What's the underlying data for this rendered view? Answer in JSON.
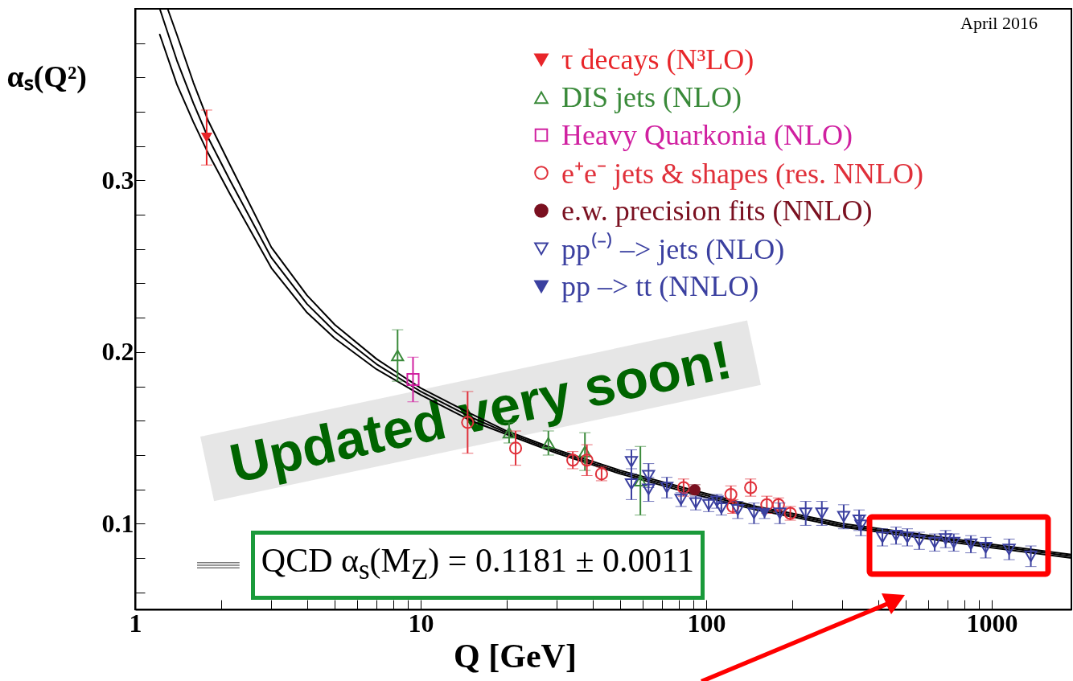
{
  "chart_data": {
    "type": "scatter",
    "xlabel": "Q [GeV]",
    "ylabel": "αₛ(Q²)",
    "xlim": [
      1,
      1900
    ],
    "ylim": [
      0.05,
      0.4
    ],
    "log": "x",
    "xticks": [
      1,
      {
        "value": 2,
        "label": null
      },
      {
        "value": 3,
        "label": null
      },
      {
        "value": 4,
        "label": null
      },
      {
        "value": 5,
        "label": null
      },
      {
        "value": 6,
        "label": null
      },
      {
        "value": 7,
        "label": null
      },
      {
        "value": 8,
        "label": null
      },
      {
        "value": 9,
        "label": null
      },
      10,
      {
        "value": 20,
        "label": null
      },
      {
        "value": 30,
        "label": null
      },
      {
        "value": 40,
        "label": null
      },
      {
        "value": 50,
        "label": null
      },
      {
        "value": 60,
        "label": null
      },
      {
        "value": 70,
        "label": null
      },
      {
        "value": 80,
        "label": null
      },
      {
        "value": 90,
        "label": null
      },
      100,
      {
        "value": 200,
        "label": null
      },
      {
        "value": 300,
        "label": null
      },
      {
        "value": 400,
        "label": null
      },
      {
        "value": 500,
        "label": null
      },
      {
        "value": 600,
        "label": null
      },
      {
        "value": 700,
        "label": null
      },
      {
        "value": 800,
        "label": null
      },
      {
        "value": 900,
        "label": null
      },
      1000
    ],
    "yticks": [
      {
        "value": 0.06,
        "label": null
      },
      {
        "value": 0.08,
        "label": null
      },
      0.1,
      {
        "value": 0.12,
        "label": null
      },
      {
        "value": 0.14,
        "label": null
      },
      {
        "value": 0.16,
        "label": null
      },
      {
        "value": 0.18,
        "label": null
      },
      0.2,
      {
        "value": 0.22,
        "label": null
      },
      {
        "value": 0.24,
        "label": null
      },
      {
        "value": 0.26,
        "label": null
      },
      {
        "value": 0.28,
        "label": null
      },
      0.3,
      {
        "value": 0.32,
        "label": null
      },
      {
        "value": 0.34,
        "label": null
      },
      {
        "value": 0.36,
        "label": null
      },
      {
        "value": 0.38,
        "label": null
      }
    ],
    "grid": false,
    "legend": "top right",
    "annotations": [
      "April 2016",
      "Updated very soon!"
    ],
    "series": [
      {
        "type": "line",
        "name": "QCD α$_{s}$(M$_{Z}$) = 0.1181 ± 0.0011",
        "color": "#000000",
        "line_style": "solid",
        "marker": "none",
        "x": [
          1.22,
          1.4,
          1.6,
          1.8,
          2.15,
          3,
          4,
          5,
          7,
          10,
          15,
          20,
          30,
          50,
          91.2,
          150,
          200,
          300,
          500,
          1000,
          1900
        ],
        "values": [
          0.4,
          0.37,
          0.345,
          0.325,
          0.3,
          0.255,
          0.228,
          0.212,
          0.193,
          0.177,
          0.162,
          0.153,
          0.142,
          0.13,
          0.1181,
          0.109,
          0.105,
          0.099,
          0.094,
          0.087,
          0.081
        ]
      },
      {
        "type": "line",
        "color": "#000000",
        "line_style": "solid",
        "marker": "none",
        "x": [
          1.3,
          1.4,
          1.6,
          1.8,
          2.15,
          3,
          4,
          5,
          7,
          10,
          15,
          20,
          30,
          50,
          91.2,
          150,
          200,
          300,
          500,
          1000,
          1900
        ],
        "values": [
          0.4,
          0.385,
          0.357,
          0.335,
          0.309,
          0.261,
          0.233,
          0.216,
          0.196,
          0.179,
          0.164,
          0.154,
          0.143,
          0.131,
          0.1192,
          0.11,
          0.106,
          0.1,
          0.095,
          0.088,
          0.082
        ]
      },
      {
        "type": "line",
        "color": "#000000",
        "line_style": "solid",
        "marker": "none",
        "x": [
          1.22,
          1.4,
          1.6,
          1.8,
          2.15,
          3,
          4,
          5,
          7,
          10,
          15,
          20,
          30,
          50,
          91.2,
          150,
          200,
          300,
          500,
          1000,
          1900
        ],
        "values": [
          0.385,
          0.356,
          0.334,
          0.316,
          0.292,
          0.249,
          0.223,
          0.208,
          0.19,
          0.175,
          0.16,
          0.152,
          0.141,
          0.129,
          0.117,
          0.108,
          0.104,
          0.098,
          0.093,
          0.086,
          0.08
        ]
      },
      {
        "name": "τ decays (N³LO)",
        "color": "#e8262a",
        "marker": "triangle-down",
        "x": [
          1.78
        ],
        "values": [
          0.325
        ],
        "errors": [
          0.016
        ]
      },
      {
        "name": "DIS jets (NLO)",
        "color": "#3a8a3a",
        "marker": "triangle-open",
        "x": [
          8.3,
          20.4,
          28.0,
          37.6,
          58.8
        ],
        "values": [
          0.198,
          0.153,
          0.147,
          0.142,
          0.125
        ],
        "errors": [
          0.015,
          0.006,
          0.007,
          0.011,
          0.02
        ]
      },
      {
        "name": "Heavy Quarkonia (NLO)",
        "color": "#d020a0",
        "marker": "square-open",
        "x": [
          9.4
        ],
        "values": [
          0.184
        ],
        "errors": [
          0.013
        ]
      },
      {
        "name": "e⁺e⁻ jets & shapes (res. NNLO)",
        "color": "#e0303a",
        "marker": "circle-open",
        "x": [
          14.6,
          21.5,
          34.1,
          38.2,
          43.0,
          83.3,
          122,
          124,
          143,
          163,
          179,
          197
        ],
        "values": [
          0.159,
          0.144,
          0.137,
          0.137,
          0.129,
          0.121,
          0.117,
          0.11,
          0.121,
          0.111,
          0.111,
          0.106
        ],
        "errors": [
          0.018,
          0.01,
          0.005,
          0.009,
          0.004,
          0.005,
          0.005,
          0.004,
          0.005,
          0.005,
          0.004,
          0.004
        ]
      },
      {
        "name": "e.w. precision fits (NNLO)",
        "color": "#7a1020",
        "marker": "circle",
        "x": [
          91.2
        ],
        "values": [
          0.1197
        ],
        "errors": [
          0.003
        ]
      },
      {
        "name": "pp⁽⁻⁾ –> jets (NLO)",
        "color": "#3b40a0",
        "marker": "triangle-down-open",
        "x": [
          54.7,
          54.7,
          62.8,
          62.8,
          72.8,
          81.6,
          91.9,
          102,
          109,
          113,
          129,
          147,
          181,
          223,
          254,
          303,
          343,
          348,
          414,
          462,
          506,
          557,
          631,
          689,
          736,
          845,
          952,
          1150,
          1370
        ],
        "values": [
          0.136,
          0.123,
          0.128,
          0.12,
          0.121,
          0.114,
          0.112,
          0.111,
          0.113,
          0.109,
          0.108,
          0.106,
          0.106,
          0.106,
          0.106,
          0.104,
          0.102,
          0.099,
          0.092,
          0.093,
          0.092,
          0.09,
          0.089,
          0.091,
          0.089,
          0.088,
          0.086,
          0.085,
          0.081
        ],
        "errors": [
          0.007,
          0.009,
          0.007,
          0.007,
          0.006,
          0.004,
          0.004,
          0.004,
          0.004,
          0.004,
          0.005,
          0.006,
          0.006,
          0.007,
          0.007,
          0.007,
          0.006,
          0.006,
          0.005,
          0.005,
          0.005,
          0.005,
          0.005,
          0.005,
          0.005,
          0.005,
          0.006,
          0.006,
          0.006
        ]
      },
      {
        "name": "pp –> tt (NNLO)",
        "color": "#3b40a0",
        "marker": "triangle-down",
        "x": [
          160
        ],
        "values": [
          0.106
        ],
        "errors": [
          0.003
        ]
      }
    ]
  }
}
